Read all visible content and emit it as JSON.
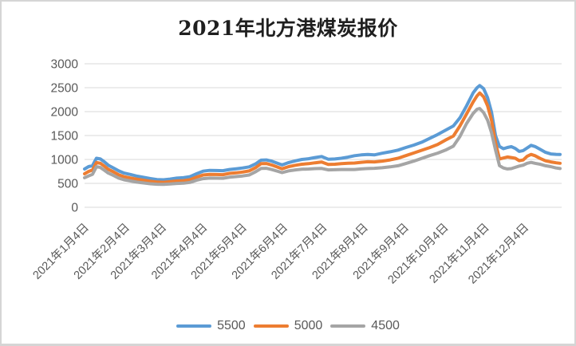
{
  "window": {
    "background": "#ffffff",
    "border_color": "#d5d5d5"
  },
  "chart_data": {
    "type": "line",
    "title": "2021年北方港煤炭报价",
    "xlabel": "",
    "ylabel": "",
    "y_axis": {
      "ticks": [
        0,
        500,
        1000,
        1500,
        2000,
        2500,
        3000
      ],
      "lim": [
        0,
        3000
      ]
    },
    "x_axis": {
      "tick_labels": [
        "2021年1月4日",
        "2021年2月4日",
        "2021年3月4日",
        "2021年4月4日",
        "2021年5月4日",
        "2021年6月4日",
        "2021年7月4日",
        "2021年8月4日",
        "2021年9月4日",
        "2021年10月4日",
        "2021年11月4日",
        "2021年12月4日"
      ],
      "tick_days": [
        0,
        31,
        59,
        90,
        120,
        151,
        181,
        212,
        243,
        273,
        304,
        334
      ],
      "rotation_deg": -45
    },
    "grid": "horizontal",
    "legend_position": "bottom",
    "x_days_from_first_point": [
      0,
      3,
      6,
      9,
      12,
      15,
      18,
      22,
      26,
      30,
      35,
      40,
      45,
      50,
      55,
      60,
      65,
      70,
      75,
      80,
      85,
      90,
      95,
      100,
      105,
      110,
      115,
      120,
      125,
      130,
      134,
      138,
      142,
      146,
      150,
      155,
      160,
      165,
      170,
      175,
      180,
      185,
      190,
      195,
      200,
      205,
      210,
      215,
      220,
      226,
      232,
      238,
      244,
      250,
      256,
      262,
      268,
      274,
      280,
      285,
      290,
      295,
      298,
      300,
      303,
      306,
      309,
      312,
      315,
      318,
      321,
      324,
      327,
      330,
      333,
      336,
      339,
      342,
      346,
      350,
      354,
      358,
      361
    ],
    "series": [
      {
        "name": "5500",
        "color": "#5B9BD5",
        "values": [
          800,
          850,
          870,
          1025,
          1010,
          950,
          880,
          820,
          760,
          715,
          685,
          650,
          625,
          600,
          580,
          575,
          590,
          610,
          618,
          640,
          700,
          755,
          772,
          768,
          765,
          790,
          805,
          822,
          845,
          910,
          985,
          990,
          965,
          925,
          885,
          935,
          970,
          1000,
          1015,
          1040,
          1062,
          1005,
          1010,
          1025,
          1048,
          1078,
          1095,
          1105,
          1095,
          1130,
          1160,
          1195,
          1250,
          1300,
          1360,
          1440,
          1520,
          1610,
          1700,
          1870,
          2120,
          2390,
          2500,
          2545,
          2480,
          2290,
          1990,
          1500,
          1270,
          1225,
          1250,
          1268,
          1230,
          1168,
          1185,
          1240,
          1295,
          1270,
          1210,
          1148,
          1115,
          1106,
          1105
        ]
      },
      {
        "name": "5000",
        "color": "#ED7D31",
        "values": [
          700,
          748,
          780,
          935,
          920,
          860,
          795,
          740,
          680,
          640,
          612,
          585,
          565,
          545,
          528,
          524,
          535,
          550,
          556,
          575,
          630,
          675,
          688,
          685,
          682,
          708,
          720,
          736,
          760,
          830,
          912,
          915,
          885,
          845,
          805,
          850,
          878,
          900,
          912,
          930,
          945,
          895,
          900,
          912,
          920,
          925,
          940,
          952,
          948,
          965,
          990,
          1025,
          1080,
          1135,
          1192,
          1248,
          1312,
          1405,
          1490,
          1700,
          1950,
          2200,
          2330,
          2390,
          2310,
          2120,
          1820,
          1350,
          1010,
          1030,
          1052,
          1040,
          1025,
          975,
          988,
          1065,
          1105,
          1078,
          1020,
          972,
          948,
          930,
          920
        ]
      },
      {
        "name": "4500",
        "color": "#A5A5A5",
        "values": [
          618,
          655,
          688,
          848,
          832,
          775,
          715,
          665,
          608,
          575,
          550,
          525,
          508,
          492,
          482,
          478,
          486,
          498,
          504,
          520,
          565,
          598,
          610,
          608,
          606,
          628,
          642,
          655,
          675,
          745,
          812,
          815,
          790,
          758,
          725,
          762,
          782,
          795,
          800,
          808,
          812,
          782,
          785,
          790,
          790,
          790,
          802,
          810,
          815,
          826,
          845,
          868,
          915,
          965,
          1022,
          1080,
          1132,
          1195,
          1278,
          1480,
          1750,
          1960,
          2050,
          2065,
          1980,
          1820,
          1560,
          1200,
          870,
          822,
          802,
          808,
          835,
          862,
          880,
          920,
          938,
          920,
          898,
          868,
          850,
          822,
          810
        ]
      }
    ],
    "colors": {
      "axis_text": "#595959",
      "gridline": "#D9D9D9",
      "title_text": "#1F1F1F"
    }
  }
}
